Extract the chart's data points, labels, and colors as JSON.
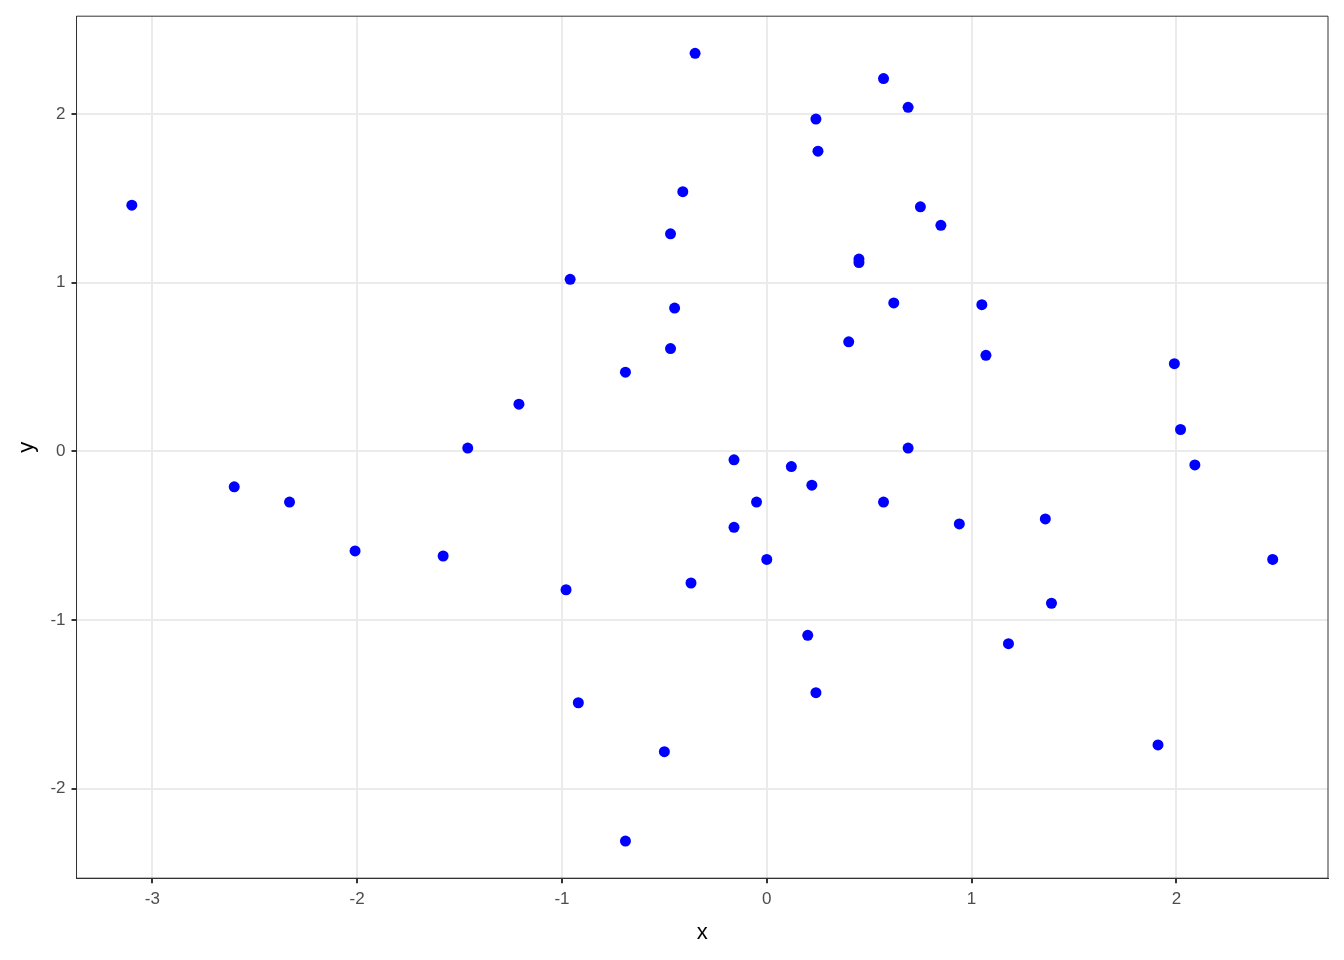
{
  "chart_data": {
    "type": "scatter",
    "xlabel": "x",
    "ylabel": "y",
    "xlim": [
      -3.37,
      2.74
    ],
    "ylim": [
      -2.53,
      2.58
    ],
    "xticks": [
      -3,
      -2,
      -1,
      0,
      1,
      2
    ],
    "yticks": [
      -2,
      -1,
      0,
      1,
      2
    ],
    "grid": true,
    "legend": false,
    "marker": "circle",
    "series": [
      {
        "color": "#0000ff",
        "x": [
          -3.1,
          -2.6,
          -2.33,
          -2.01,
          -1.58,
          -1.46,
          -1.21,
          -0.96,
          -0.98,
          -0.92,
          -0.69,
          -0.69,
          -0.5,
          -0.47,
          -0.47,
          -0.45,
          -0.41,
          -0.37,
          -0.35,
          -0.16,
          -0.16,
          -0.05,
          0.0,
          0.12,
          0.2,
          0.22,
          0.24,
          0.25,
          0.24,
          0.4,
          0.45,
          0.45,
          0.57,
          0.57,
          0.62,
          0.69,
          0.69,
          0.75,
          0.85,
          0.94,
          1.05,
          1.07,
          1.18,
          1.36,
          1.39,
          1.91,
          1.99,
          2.02,
          2.09,
          2.47
        ],
        "values": [
          1.46,
          -0.21,
          -0.3,
          -0.59,
          -0.62,
          0.02,
          0.28,
          1.02,
          -0.82,
          -1.49,
          0.47,
          -2.31,
          -1.78,
          1.29,
          0.61,
          0.85,
          1.54,
          -0.78,
          2.36,
          -0.05,
          -0.45,
          -0.3,
          -0.64,
          -0.09,
          -1.09,
          -0.2,
          1.97,
          1.78,
          -1.43,
          0.65,
          1.14,
          1.12,
          2.21,
          -0.3,
          0.88,
          2.04,
          0.02,
          1.45,
          1.34,
          -0.43,
          0.87,
          0.57,
          -1.14,
          -0.4,
          -0.9,
          -1.74,
          0.52,
          0.13,
          -0.08,
          -0.64
        ]
      }
    ]
  }
}
